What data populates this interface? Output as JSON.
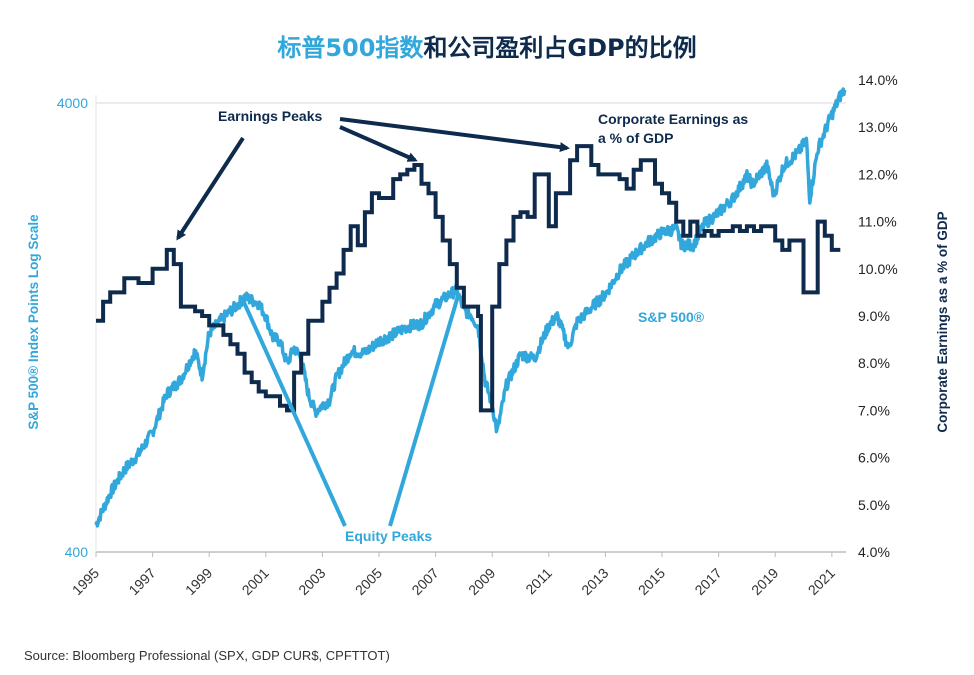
{
  "title": {
    "part1": "标普500指数",
    "part2": "和公司盈利占GDP的比例"
  },
  "source": "Source: Bloomberg Professional (SPX, GDP CUR$, CPFTTOT)",
  "colors": {
    "sp500": "#31a7dc",
    "earnings": "#0e2a4c",
    "title_accent": "#31a7dc",
    "title_dark": "#0e2a4c",
    "grid": "#e6e6e6",
    "axis": "#bdbdbd"
  },
  "chart_data": {
    "type": "line",
    "x_range": [
      1995,
      2021.5
    ],
    "x_ticks": [
      "1995",
      "1997",
      "1999",
      "2001",
      "2003",
      "2005",
      "2007",
      "2009",
      "2011",
      "2013",
      "2015",
      "2017",
      "2019",
      "2021"
    ],
    "y_left": {
      "label": "S&P 500® Index Points Log Scale",
      "scale": "log",
      "range": [
        400,
        4000
      ],
      "ticks": [
        "400",
        "4000"
      ]
    },
    "y_right": {
      "label": "Corporate Earnings as a % of GDP",
      "range": [
        4.0,
        14.0
      ],
      "ticks": [
        "4.0%",
        "5.0%",
        "6.0%",
        "7.0%",
        "8.0%",
        "9.0%",
        "10.0%",
        "11.0%",
        "12.0%",
        "13.0%",
        "14.0%"
      ]
    },
    "grid": "horizontal at 400 and 4000",
    "series": [
      {
        "name": "S&P 500®",
        "axis": "left",
        "points": [
          [
            1995.0,
            460
          ],
          [
            1995.5,
            540
          ],
          [
            1996.0,
            610
          ],
          [
            1996.5,
            660
          ],
          [
            1997.0,
            740
          ],
          [
            1997.5,
            900
          ],
          [
            1998.0,
            970
          ],
          [
            1998.5,
            1120
          ],
          [
            1998.75,
            990
          ],
          [
            1999.0,
            1230
          ],
          [
            1999.5,
            1330
          ],
          [
            2000.0,
            1420
          ],
          [
            2000.25,
            1480
          ],
          [
            2000.75,
            1430
          ],
          [
            2001.0,
            1340
          ],
          [
            2001.25,
            1200
          ],
          [
            2001.5,
            1180
          ],
          [
            2001.75,
            1050
          ],
          [
            2002.0,
            1140
          ],
          [
            2002.25,
            1080
          ],
          [
            2002.5,
            900
          ],
          [
            2002.75,
            820
          ],
          [
            2003.0,
            850
          ],
          [
            2003.25,
            870
          ],
          [
            2003.5,
            980
          ],
          [
            2004.0,
            1120
          ],
          [
            2004.5,
            1110
          ],
          [
            2005.0,
            1180
          ],
          [
            2005.5,
            1220
          ],
          [
            2006.0,
            1270
          ],
          [
            2006.5,
            1290
          ],
          [
            2007.0,
            1420
          ],
          [
            2007.5,
            1500
          ],
          [
            2007.75,
            1530
          ],
          [
            2008.0,
            1380
          ],
          [
            2008.25,
            1350
          ],
          [
            2008.5,
            1270
          ],
          [
            2008.75,
            960
          ],
          [
            2009.0,
            850
          ],
          [
            2009.17,
            740
          ],
          [
            2009.5,
            940
          ],
          [
            2010.0,
            1100
          ],
          [
            2010.5,
            1080
          ],
          [
            2011.0,
            1280
          ],
          [
            2011.3,
            1340
          ],
          [
            2011.7,
            1140
          ],
          [
            2012.0,
            1300
          ],
          [
            2012.5,
            1400
          ],
          [
            2013.0,
            1500
          ],
          [
            2013.5,
            1690
          ],
          [
            2014.0,
            1830
          ],
          [
            2014.5,
            1960
          ],
          [
            2015.0,
            2060
          ],
          [
            2015.5,
            2100
          ],
          [
            2015.7,
            1930
          ],
          [
            2016.1,
            1930
          ],
          [
            2016.5,
            2150
          ],
          [
            2017.0,
            2280
          ],
          [
            2017.5,
            2450
          ],
          [
            2018.0,
            2750
          ],
          [
            2018.2,
            2640
          ],
          [
            2018.7,
            2900
          ],
          [
            2018.95,
            2500
          ],
          [
            2019.3,
            2900
          ],
          [
            2019.8,
            3100
          ],
          [
            2020.1,
            3300
          ],
          [
            2020.22,
            2450
          ],
          [
            2020.5,
            3150
          ],
          [
            2020.9,
            3650
          ],
          [
            2021.3,
            4150
          ],
          [
            2021.45,
            4280
          ]
        ]
      },
      {
        "name": "Corporate Earnings as a % of GDP",
        "axis": "right",
        "step": true,
        "points": [
          [
            1995.0,
            8.9
          ],
          [
            1995.25,
            9.3
          ],
          [
            1995.5,
            9.5
          ],
          [
            1996.0,
            9.8
          ],
          [
            1996.5,
            9.7
          ],
          [
            1997.0,
            10.0
          ],
          [
            1997.5,
            10.4
          ],
          [
            1997.75,
            10.1
          ],
          [
            1998.0,
            9.2
          ],
          [
            1998.5,
            9.1
          ],
          [
            1998.75,
            9.0
          ],
          [
            1999.0,
            8.8
          ],
          [
            1999.5,
            8.6
          ],
          [
            1999.75,
            8.4
          ],
          [
            2000.0,
            8.2
          ],
          [
            2000.25,
            7.8
          ],
          [
            2000.5,
            7.6
          ],
          [
            2000.75,
            7.4
          ],
          [
            2001.0,
            7.3
          ],
          [
            2001.25,
            7.3
          ],
          [
            2001.5,
            7.1
          ],
          [
            2001.75,
            7.0
          ],
          [
            2002.0,
            7.8
          ],
          [
            2002.25,
            8.2
          ],
          [
            2002.5,
            8.9
          ],
          [
            2003.0,
            9.3
          ],
          [
            2003.25,
            9.6
          ],
          [
            2003.5,
            9.9
          ],
          [
            2003.75,
            10.4
          ],
          [
            2004.0,
            10.9
          ],
          [
            2004.25,
            10.5
          ],
          [
            2004.5,
            11.2
          ],
          [
            2004.75,
            11.6
          ],
          [
            2005.0,
            11.5
          ],
          [
            2005.5,
            11.9
          ],
          [
            2005.75,
            12.0
          ],
          [
            2006.0,
            12.1
          ],
          [
            2006.25,
            12.2
          ],
          [
            2006.5,
            11.8
          ],
          [
            2006.75,
            11.6
          ],
          [
            2007.0,
            11.1
          ],
          [
            2007.25,
            10.6
          ],
          [
            2007.5,
            10.1
          ],
          [
            2007.75,
            9.6
          ],
          [
            2008.0,
            9.2
          ],
          [
            2008.25,
            9.2
          ],
          [
            2008.5,
            9.0
          ],
          [
            2008.6,
            7.0
          ],
          [
            2008.9,
            7.0
          ],
          [
            2009.0,
            9.2
          ],
          [
            2009.25,
            10.1
          ],
          [
            2009.5,
            10.6
          ],
          [
            2009.75,
            11.1
          ],
          [
            2010.0,
            11.2
          ],
          [
            2010.25,
            11.1
          ],
          [
            2010.5,
            12.0
          ],
          [
            2010.75,
            12.0
          ],
          [
            2011.0,
            10.9
          ],
          [
            2011.25,
            11.6
          ],
          [
            2011.5,
            11.6
          ],
          [
            2011.75,
            12.3
          ],
          [
            2012.0,
            12.6
          ],
          [
            2012.25,
            12.6
          ],
          [
            2012.5,
            12.2
          ],
          [
            2012.75,
            12.0
          ],
          [
            2013.0,
            12.0
          ],
          [
            2013.25,
            12.0
          ],
          [
            2013.5,
            11.9
          ],
          [
            2013.75,
            11.7
          ],
          [
            2014.0,
            12.1
          ],
          [
            2014.25,
            12.3
          ],
          [
            2014.5,
            12.3
          ],
          [
            2014.75,
            11.8
          ],
          [
            2015.0,
            11.6
          ],
          [
            2015.25,
            11.4
          ],
          [
            2015.5,
            11.0
          ],
          [
            2015.75,
            10.7
          ],
          [
            2016.0,
            11.0
          ],
          [
            2016.25,
            10.7
          ],
          [
            2016.5,
            10.8
          ],
          [
            2016.75,
            10.7
          ],
          [
            2017.0,
            10.8
          ],
          [
            2017.25,
            10.8
          ],
          [
            2017.5,
            10.9
          ],
          [
            2017.75,
            10.8
          ],
          [
            2018.0,
            10.9
          ],
          [
            2018.25,
            10.8
          ],
          [
            2018.5,
            10.9
          ],
          [
            2018.75,
            10.9
          ],
          [
            2019.0,
            10.6
          ],
          [
            2019.25,
            10.4
          ],
          [
            2019.5,
            10.6
          ],
          [
            2019.75,
            10.6
          ],
          [
            2020.0,
            9.5
          ],
          [
            2020.25,
            9.5
          ],
          [
            2020.5,
            11.0
          ],
          [
            2020.75,
            10.7
          ],
          [
            2021.0,
            10.4
          ],
          [
            2021.3,
            10.4
          ]
        ]
      }
    ],
    "annotations": [
      {
        "name": "earnings-peaks",
        "text": "Earnings Peaks",
        "color": "dark"
      },
      {
        "name": "corp-earnings-label",
        "lines": [
          "Corporate Earnings as",
          "a % of GDP"
        ],
        "color": "dark"
      },
      {
        "name": "equity-peaks",
        "text": "Equity Peaks",
        "color": "light"
      },
      {
        "name": "sp500-label",
        "text": "S&P 500®",
        "color": "light"
      }
    ]
  }
}
